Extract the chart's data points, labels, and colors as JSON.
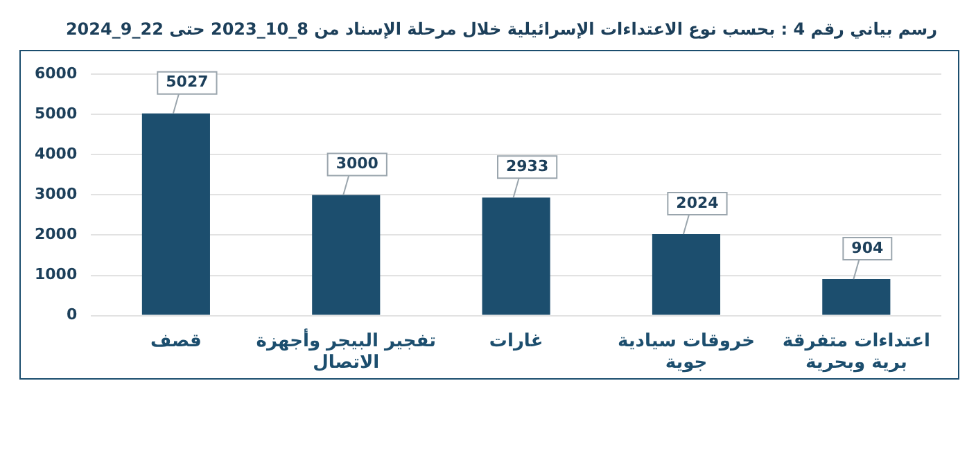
{
  "chart_data": {
    "type": "bar",
    "title": "رسم بياني رقم 4 : بحسب نوع الاعتداءات الإسرائيلية خلال مرحلة الإسناد من 8_10_2023 حتى 22_9_2024",
    "categories": [
      "قصف",
      "تفجير البيجر وأجهزة\nالاتصال",
      "غارات",
      "خروقات سيادية\nجوية",
      "اعتداءات متفرقة\nبرية وبحرية"
    ],
    "values": [
      5027,
      3000,
      2933,
      2024,
      904
    ],
    "color": "#1c4e6e",
    "ylim": [
      0,
      6000
    ],
    "yticks": [
      0,
      1000,
      2000,
      3000,
      4000,
      5000,
      6000
    ],
    "grid": "y",
    "data_labels": true
  }
}
